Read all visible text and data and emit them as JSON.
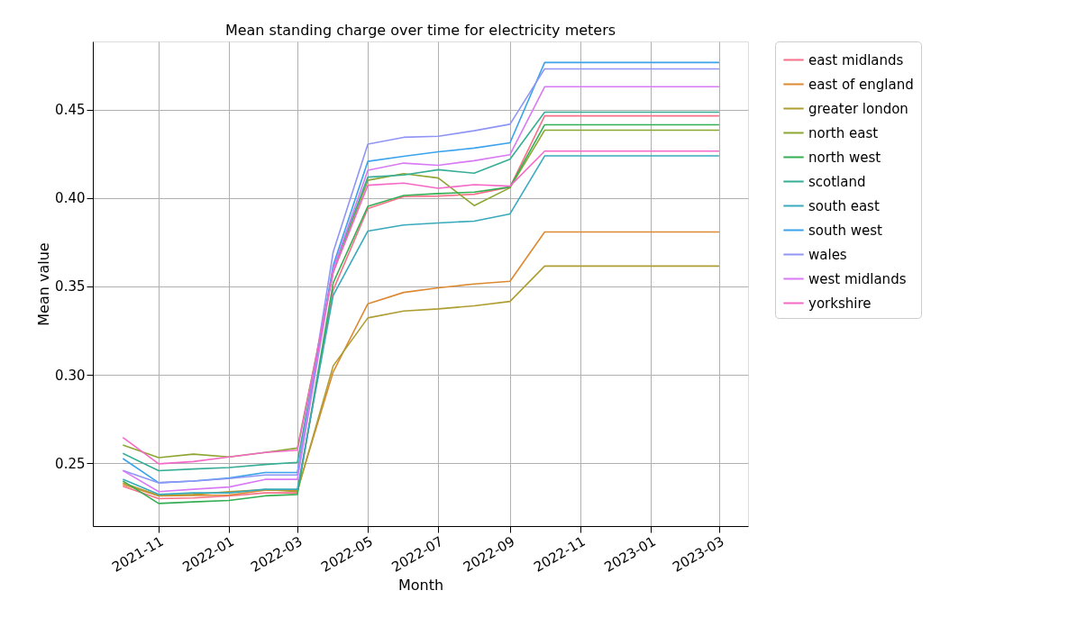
{
  "chart_data": {
    "type": "line",
    "title": "Mean standing charge over time for electricity meters",
    "xlabel": "Month",
    "ylabel": "Mean value",
    "x": [
      "2021-10",
      "2021-11",
      "2021-12",
      "2022-01",
      "2022-02",
      "2022-03",
      "2022-04",
      "2022-05",
      "2022-06",
      "2022-07",
      "2022-08",
      "2022-09",
      "2022-10",
      "2022-11",
      "2022-12",
      "2023-01",
      "2023-02",
      "2023-03"
    ],
    "xlim": [
      "2021-09-05",
      "2023-03-26"
    ],
    "xticks": [
      "2021-11",
      "2022-01",
      "2022-03",
      "2022-05",
      "2022-07",
      "2022-09",
      "2022-11",
      "2023-01",
      "2023-03"
    ],
    "ylim": [
      0.2145,
      0.4885
    ],
    "yticks": [
      {
        "value": 0.25,
        "label": "0.25"
      },
      {
        "value": 0.3,
        "label": "0.30"
      },
      {
        "value": 0.35,
        "label": "0.35"
      },
      {
        "value": 0.4,
        "label": "0.40"
      },
      {
        "value": 0.45,
        "label": "0.45"
      }
    ],
    "grid": true,
    "legend": "right",
    "marker": "none",
    "line_style": "solid",
    "series": [
      {
        "name": "east midlands",
        "color": "#f77189",
        "values": [
          0.237,
          0.23,
          0.2304,
          0.2316,
          0.2333,
          0.2333,
          0.348,
          0.394,
          0.4008,
          0.4011,
          0.4021,
          0.4062,
          0.4464,
          0.4464,
          0.4464,
          0.4464,
          0.4464,
          0.4464
        ]
      },
      {
        "name": "east of england",
        "color": "#dc8932",
        "values": [
          0.238,
          0.2316,
          0.2319,
          0.2321,
          0.2348,
          0.2348,
          0.3017,
          0.3402,
          0.3466,
          0.3492,
          0.3514,
          0.3529,
          0.3808,
          0.3808,
          0.3808,
          0.3808,
          0.3808,
          0.3808
        ]
      },
      {
        "name": "greater london",
        "color": "#ae9d31",
        "values": [
          0.239,
          0.2318,
          0.2324,
          0.234,
          0.2351,
          0.234,
          0.3051,
          0.3322,
          0.3361,
          0.3373,
          0.339,
          0.3415,
          0.3615,
          0.3615,
          0.3615,
          0.3615,
          0.3615,
          0.3615
        ]
      },
      {
        "name": "north east",
        "color": "#8ca631",
        "values": [
          0.2603,
          0.2532,
          0.2552,
          0.2536,
          0.2561,
          0.2586,
          0.358,
          0.41,
          0.4138,
          0.4113,
          0.3957,
          0.4058,
          0.4383,
          0.4383,
          0.4383,
          0.4383,
          0.4383,
          0.4383
        ]
      },
      {
        "name": "north west",
        "color": "#34ae52",
        "values": [
          0.24,
          0.2273,
          0.2282,
          0.229,
          0.2316,
          0.2324,
          0.352,
          0.3953,
          0.4014,
          0.4025,
          0.4033,
          0.4062,
          0.4414,
          0.4414,
          0.4414,
          0.4414,
          0.4414,
          0.4414
        ]
      },
      {
        "name": "scotland",
        "color": "#36ad95",
        "values": [
          0.2556,
          0.2458,
          0.2468,
          0.2476,
          0.2493,
          0.2505,
          0.36,
          0.4118,
          0.413,
          0.416,
          0.414,
          0.4219,
          0.4485,
          0.4485,
          0.4485,
          0.4485,
          0.4485,
          0.4485
        ]
      },
      {
        "name": "south east",
        "color": "#38aabb",
        "values": [
          0.241,
          0.2324,
          0.2333,
          0.2333,
          0.2353,
          0.2353,
          0.345,
          0.3813,
          0.3847,
          0.3859,
          0.3869,
          0.391,
          0.4238,
          0.4238,
          0.4238,
          0.4238,
          0.4238,
          0.4238
        ]
      },
      {
        "name": "south west",
        "color": "#3ba3ec",
        "values": [
          0.2527,
          0.239,
          0.24,
          0.2417,
          0.2448,
          0.2448,
          0.362,
          0.4207,
          0.4236,
          0.4261,
          0.4282,
          0.4312,
          0.4766,
          0.4766,
          0.4766,
          0.4766,
          0.4766,
          0.4766
        ]
      },
      {
        "name": "wales",
        "color": "#8f95f4",
        "values": [
          0.2459,
          0.239,
          0.24,
          0.2414,
          0.2434,
          0.2434,
          0.3695,
          0.4304,
          0.4343,
          0.4349,
          0.438,
          0.4417,
          0.473,
          0.473,
          0.473,
          0.473,
          0.473,
          0.473
        ]
      },
      {
        "name": "west midlands",
        "color": "#d87af4",
        "values": [
          0.2459,
          0.234,
          0.2353,
          0.2366,
          0.2409,
          0.2409,
          0.36,
          0.4157,
          0.4197,
          0.4185,
          0.4211,
          0.4245,
          0.4629,
          0.4629,
          0.4629,
          0.4629,
          0.4629,
          0.4629
        ]
      },
      {
        "name": "yorkshire",
        "color": "#f569c6",
        "values": [
          0.2646,
          0.2497,
          0.251,
          0.2536,
          0.2561,
          0.2574,
          0.358,
          0.4072,
          0.4084,
          0.4055,
          0.4075,
          0.4067,
          0.4265,
          0.4265,
          0.4265,
          0.4265,
          0.4265,
          0.4265
        ]
      }
    ]
  }
}
